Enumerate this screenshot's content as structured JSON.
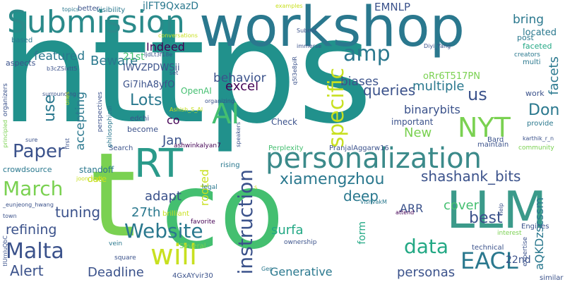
{
  "palette": {
    "background": "#ffffff",
    "colors": [
      "#440154",
      "#3b528b",
      "#2a788e",
      "#21918c",
      "#22a884",
      "#44bf70",
      "#7ad151",
      "#c8e020",
      "#fde725"
    ]
  },
  "words": [
    {
      "text": "https",
      "color": "#21918c",
      "size": 205,
      "dir": "h"
    },
    {
      "text": "co",
      "color": "#44bf70",
      "size": 150,
      "dir": "h"
    },
    {
      "text": "t",
      "color": "#7ad151",
      "size": 165,
      "dir": "h"
    },
    {
      "text": "workshop",
      "color": "#2a788e",
      "size": 78,
      "dir": "h"
    },
    {
      "text": "LLM",
      "color": "#3b9a8a",
      "size": 72,
      "dir": "h"
    },
    {
      "text": "Submission",
      "color": "#2a8a8a",
      "size": 44,
      "dir": "h"
    },
    {
      "text": "personalization",
      "color": "#3b8a8a",
      "size": 40,
      "dir": "h"
    },
    {
      "text": "RT",
      "color": "#2a9a8a",
      "size": 56,
      "dir": "h"
    },
    {
      "text": "AI",
      "color": "#44bf70",
      "size": 40,
      "dir": "h"
    },
    {
      "text": "amp",
      "color": "#2a788e",
      "size": 30,
      "dir": "h"
    },
    {
      "text": "NYT",
      "color": "#7ad151",
      "size": 38,
      "dir": "h"
    },
    {
      "text": "will",
      "color": "#c8e020",
      "size": 40,
      "dir": "h"
    },
    {
      "text": "Paper",
      "color": "#3b528b",
      "size": 26,
      "dir": "h"
    },
    {
      "text": "March",
      "color": "#7ad151",
      "size": 28,
      "dir": "h"
    },
    {
      "text": "Website",
      "color": "#2a788e",
      "size": 28,
      "dir": "h"
    },
    {
      "text": "Malta",
      "color": "#3b528b",
      "size": 30,
      "dir": "h"
    },
    {
      "text": "data",
      "color": "#22a884",
      "size": 28,
      "dir": "h"
    },
    {
      "text": "EACL",
      "color": "#2a788e",
      "size": 32,
      "dir": "h"
    },
    {
      "text": "specific",
      "color": "#c8e020",
      "size": 30,
      "dir": "v"
    },
    {
      "text": "instruction",
      "color": "#3b528b",
      "size": 28,
      "dir": "v"
    },
    {
      "text": "xiamengzhou",
      "color": "#2a788e",
      "size": 22,
      "dir": "h"
    },
    {
      "text": "shashank_bits",
      "color": "#3b528b",
      "size": 20,
      "dir": "h"
    },
    {
      "text": "Lots",
      "color": "#2a788e",
      "size": 22,
      "dir": "h"
    },
    {
      "text": "queries",
      "color": "#3b528b",
      "size": 20,
      "dir": "h"
    },
    {
      "text": "us",
      "color": "#3b528b",
      "size": 24,
      "dir": "h"
    },
    {
      "text": "Don",
      "color": "#2a788e",
      "size": 22,
      "dir": "h"
    },
    {
      "text": "excel",
      "color": "#440154",
      "size": 18,
      "dir": "h"
    },
    {
      "text": "multiple",
      "color": "#2a788e",
      "size": 18,
      "dir": "h"
    },
    {
      "text": "Beware",
      "color": "#2a788e",
      "size": 18,
      "dir": "h"
    },
    {
      "text": "Indeed",
      "color": "#440154",
      "size": 16,
      "dir": "h"
    },
    {
      "text": "featured",
      "color": "#2a788e",
      "size": 17,
      "dir": "h"
    },
    {
      "text": "behavior",
      "color": "#3b528b",
      "size": 17,
      "dir": "h"
    },
    {
      "text": "biases",
      "color": "#3b528b",
      "size": 17,
      "dir": "h"
    },
    {
      "text": "bring",
      "color": "#2a788e",
      "size": 17,
      "dir": "h"
    },
    {
      "text": "located",
      "color": "#2a788e",
      "size": 13,
      "dir": "h"
    },
    {
      "text": "facets",
      "color": "#2a788e",
      "size": 18,
      "dir": "v"
    },
    {
      "text": "binarybits",
      "color": "#3b528b",
      "size": 16,
      "dir": "h"
    },
    {
      "text": "use",
      "color": "#2a788e",
      "size": 22,
      "dir": "v"
    },
    {
      "text": "accepting",
      "color": "#2a788e",
      "size": 17,
      "dir": "v"
    },
    {
      "text": "rooted",
      "color": "#c8e020",
      "size": 16,
      "dir": "v"
    },
    {
      "text": "form",
      "color": "#22a884",
      "size": 14,
      "dir": "v"
    },
    {
      "text": "aQKDzscssm",
      "color": "#2a788e",
      "size": 16,
      "dir": "v"
    },
    {
      "text": "New",
      "color": "#7ad151",
      "size": 18,
      "dir": "h"
    },
    {
      "text": "deep",
      "color": "#2a788e",
      "size": 20,
      "dir": "h"
    },
    {
      "text": "best",
      "color": "#3b528b",
      "size": 22,
      "dir": "h"
    },
    {
      "text": "personas",
      "color": "#3b528b",
      "size": 18,
      "dir": "h"
    },
    {
      "text": "Jan",
      "color": "#3b528b",
      "size": 18,
      "dir": "h"
    },
    {
      "text": "tuning",
      "color": "#3b528b",
      "size": 20,
      "dir": "h"
    },
    {
      "text": "refining",
      "color": "#3b528b",
      "size": 19,
      "dir": "h"
    },
    {
      "text": "adapt",
      "color": "#3b528b",
      "size": 18,
      "dir": "h"
    },
    {
      "text": "cover",
      "color": "#44bf70",
      "size": 18,
      "dir": "h"
    },
    {
      "text": "surfa",
      "color": "#22a884",
      "size": 18,
      "dir": "h"
    },
    {
      "text": "27th",
      "color": "#2a788e",
      "size": 18,
      "dir": "h"
    },
    {
      "text": "22nd",
      "color": "#3b528b",
      "size": 14,
      "dir": "h"
    },
    {
      "text": "Alert",
      "color": "#3b528b",
      "size": 20,
      "dir": "h"
    },
    {
      "text": "Deadline",
      "color": "#3b528b",
      "size": 18,
      "dir": "h"
    },
    {
      "text": "Generative",
      "color": "#2a788e",
      "size": 16,
      "dir": "h"
    },
    {
      "text": "ARR",
      "color": "#3b528b",
      "size": 16,
      "dir": "h"
    },
    {
      "text": "EMNLP",
      "color": "#3b528b",
      "size": 15,
      "dir": "h"
    },
    {
      "text": "jlFT9QxazD",
      "color": "#2a788e",
      "size": 14,
      "dir": "h"
    },
    {
      "text": "IWVZPDWSii",
      "color": "#3b528b",
      "size": 13,
      "dir": "h"
    },
    {
      "text": "Gi7ihA8yfO",
      "color": "#3b528b",
      "size": 13,
      "dir": "h"
    },
    {
      "text": "oRr6T517PN",
      "color": "#7ad151",
      "size": 13,
      "dir": "h"
    },
    {
      "text": "21st",
      "color": "#44bf70",
      "size": 14,
      "dir": "h"
    },
    {
      "text": "OpenAI",
      "color": "#44bf70",
      "size": 12,
      "dir": "h"
    },
    {
      "text": "co",
      "color": "#440154",
      "size": 16,
      "dir": "h"
    },
    {
      "text": "standoff",
      "color": "#2a788e",
      "size": 12,
      "dir": "h"
    },
    {
      "text": "crowdsource",
      "color": "#2a788e",
      "size": 11,
      "dir": "h"
    },
    {
      "text": "date",
      "color": "#c8e020",
      "size": 12,
      "dir": "h"
    },
    {
      "text": "Check",
      "color": "#3b528b",
      "size": 12,
      "dir": "h"
    },
    {
      "text": "important",
      "color": "#3b528b",
      "size": 12,
      "dir": "h"
    },
    {
      "text": "work",
      "color": "#3b528b",
      "size": 11,
      "dir": "h"
    },
    {
      "text": "provide",
      "color": "#2a788e",
      "size": 10,
      "dir": "h"
    },
    {
      "text": "visibility",
      "color": "#2a788e",
      "size": 10,
      "dir": "h"
    },
    {
      "text": "better",
      "color": "#3b528b",
      "size": 10,
      "dir": "h"
    },
    {
      "text": "aspects",
      "color": "#3b528b",
      "size": 11,
      "dir": "h"
    },
    {
      "text": "based",
      "color": "#2a788e",
      "size": 10,
      "dir": "h"
    },
    {
      "text": "post",
      "color": "#2a788e",
      "size": 11,
      "dir": "h"
    },
    {
      "text": "faceted",
      "color": "#22a884",
      "size": 11,
      "dir": "h"
    },
    {
      "text": "creators",
      "color": "#2a788e",
      "size": 9,
      "dir": "h"
    },
    {
      "text": "multi",
      "color": "#2a788e",
      "size": 10,
      "dir": "h"
    },
    {
      "text": "become",
      "color": "#3b528b",
      "size": 11,
      "dir": "h"
    },
    {
      "text": "edchi",
      "color": "#3b528b",
      "size": 10,
      "dir": "h"
    },
    {
      "text": "Search",
      "color": "#3b528b",
      "size": 10,
      "dir": "h"
    },
    {
      "text": "Perplexity",
      "color": "#44bf70",
      "size": 10,
      "dir": "h"
    },
    {
      "text": "PranjalAggarw16",
      "color": "#3b528b",
      "size": 10,
      "dir": "h"
    },
    {
      "text": "ashwinkalyan7",
      "color": "#440154",
      "size": 9,
      "dir": "h"
    },
    {
      "text": "maintain",
      "color": "#3b528b",
      "size": 10,
      "dir": "h"
    },
    {
      "text": "Bard",
      "color": "#3b528b",
      "size": 10,
      "dir": "h"
    },
    {
      "text": "community",
      "color": "#7ad151",
      "size": 9,
      "dir": "h"
    },
    {
      "text": "rising",
      "color": "#2a788e",
      "size": 10,
      "dir": "h"
    },
    {
      "text": "legal",
      "color": "#2a788e",
      "size": 9,
      "dir": "h"
    },
    {
      "text": "brilliant",
      "color": "#c8e020",
      "size": 10,
      "dir": "h"
    },
    {
      "text": "favorite",
      "color": "#440154",
      "size": 9,
      "dir": "h"
    },
    {
      "text": "Several",
      "color": "#7ad151",
      "size": 10,
      "dir": "h"
    },
    {
      "text": "vein",
      "color": "#2a788e",
      "size": 9,
      "dir": "h"
    },
    {
      "text": "square",
      "color": "#3b528b",
      "size": 9,
      "dir": "h"
    },
    {
      "text": "Gen",
      "color": "#2a788e",
      "size": 8,
      "dir": "h"
    },
    {
      "text": "4GxAYvir30",
      "color": "#3b528b",
      "size": 10,
      "dir": "h"
    },
    {
      "text": "Engines",
      "color": "#3b528b",
      "size": 10,
      "dir": "h"
    },
    {
      "text": "interest",
      "color": "#7ad151",
      "size": 9,
      "dir": "h"
    },
    {
      "text": "technical",
      "color": "#3b528b",
      "size": 10,
      "dir": "h"
    },
    {
      "text": "similar",
      "color": "#3b528b",
      "size": 10,
      "dir": "h"
    },
    {
      "text": "ownership",
      "color": "#3b528b",
      "size": 9,
      "dir": "h"
    },
    {
      "text": "attend",
      "color": "#440154",
      "size": 8,
      "dir": "h"
    },
    {
      "text": "VishvakM",
      "color": "#2a788e",
      "size": 8,
      "dir": "h"
    },
    {
      "text": "town",
      "color": "#3b528b",
      "size": 8,
      "dir": "h"
    },
    {
      "text": "examples",
      "color": "#c8e020",
      "size": 8,
      "dir": "h"
    },
    {
      "text": "Submit",
      "color": "#3b528b",
      "size": 8,
      "dir": "h"
    },
    {
      "text": "immerse",
      "color": "#3b528b",
      "size": 8,
      "dir": "h"
    },
    {
      "text": "conversations",
      "color": "#c8e020",
      "size": 8,
      "dir": "h"
    },
    {
      "text": "topics",
      "color": "#2a788e",
      "size": 8,
      "dir": "h"
    },
    {
      "text": "Diyi_Yang",
      "color": "#3b528b",
      "size": 8,
      "dir": "h"
    },
    {
      "text": "karthik_r_n",
      "color": "#3b528b",
      "size": 8,
      "dir": "h"
    },
    {
      "text": "Ashish_S_AI",
      "color": "#c8e020",
      "size": 8,
      "dir": "h"
    },
    {
      "text": "organizing",
      "color": "#3b528b",
      "size": 8,
      "dir": "h"
    },
    {
      "text": "set",
      "color": "#3b528b",
      "size": 8,
      "dir": "h"
    },
    {
      "text": "surrounding",
      "color": "#3b528b",
      "size": 8,
      "dir": "h"
    },
    {
      "text": "joon_s_pk",
      "color": "#c8e020",
      "size": 8,
      "dir": "h"
    },
    {
      "text": "_eunjeong_hwang",
      "color": "#3b528b",
      "size": 8,
      "dir": "h"
    },
    {
      "text": "b3cZSixtt5",
      "color": "#3b528b",
      "size": 8,
      "dir": "h"
    },
    {
      "text": "organizers",
      "color": "#3b528b",
      "size": 9,
      "dir": "v"
    },
    {
      "text": "perspectives",
      "color": "#3b528b",
      "size": 9,
      "dir": "v"
    },
    {
      "text": "philosophical",
      "color": "#2a788e",
      "size": 9,
      "dir": "v"
    },
    {
      "text": "principled",
      "color": "#7ad151",
      "size": 8,
      "dir": "v"
    },
    {
      "text": "first",
      "color": "#3b528b",
      "size": 8,
      "dir": "v"
    },
    {
      "text": "sure",
      "color": "#3b528b",
      "size": 8,
      "dir": "h"
    },
    {
      "text": "ones",
      "color": "#c8e020",
      "size": 8,
      "dir": "v"
    },
    {
      "text": "speakers",
      "color": "#3b528b",
      "size": 8,
      "dir": "v"
    },
    {
      "text": "help",
      "color": "#3b528b",
      "size": 8,
      "dir": "v"
    },
    {
      "text": "expertise",
      "color": "#3b528b",
      "size": 9,
      "dir": "v"
    },
    {
      "text": "s",
      "color": "#c8e020",
      "size": 8,
      "dir": "h"
    },
    {
      "text": "IjdLt3f18e",
      "color": "#3b528b",
      "size": 8,
      "dir": "h"
    },
    {
      "text": "tlUrnluQbC",
      "color": "#3b528b",
      "size": 8,
      "dir": "v"
    },
    {
      "text": "q5I3e8piR",
      "color": "#3b528b",
      "size": 8,
      "dir": "v"
    }
  ]
}
